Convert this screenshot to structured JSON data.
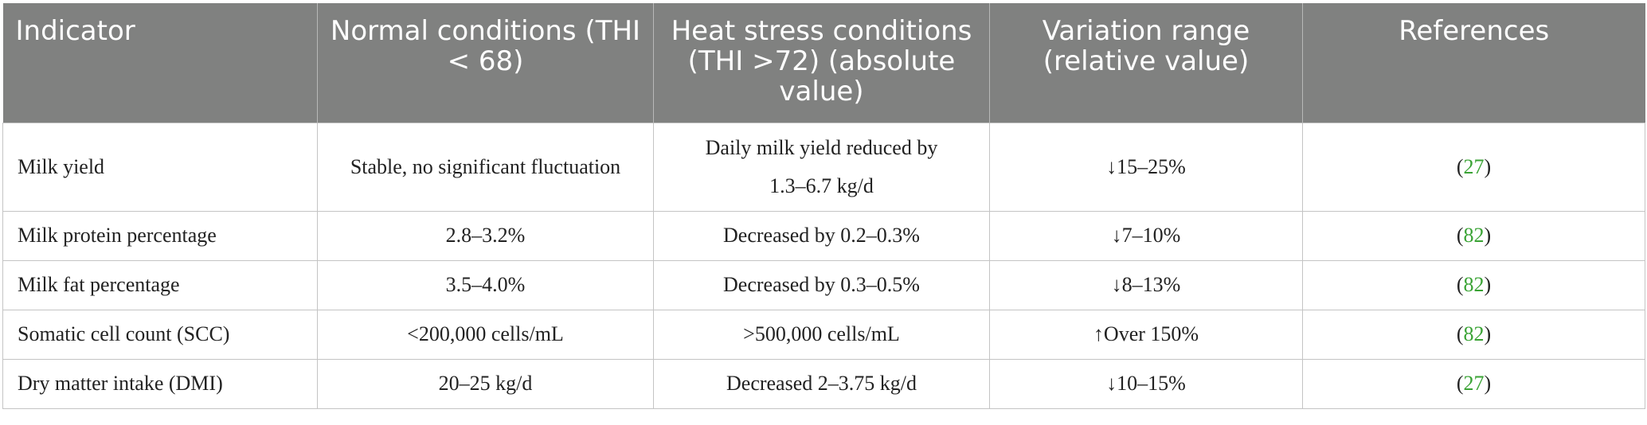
{
  "table": {
    "headers": [
      "Indicator",
      "Normal conditions (THI < 68)",
      "Heat stress conditions (THI >72) (absolute value)",
      "Variation range (relative value)",
      "References"
    ],
    "rows": [
      {
        "indicator": "Milk yield",
        "normal": "Stable, no significant fluctuation",
        "heat_stress": "Daily milk yield reduced by 1.3–6.7 kg/d",
        "variation": "↓15–25%",
        "ref": "27"
      },
      {
        "indicator": "Milk protein percentage",
        "normal": "2.8–3.2%",
        "heat_stress": "Decreased by 0.2–0.3%",
        "variation": "↓7–10%",
        "ref": "82"
      },
      {
        "indicator": "Milk fat percentage",
        "normal": "3.5–4.0%",
        "heat_stress": "Decreased by 0.3–0.5%",
        "variation": "↓8–13%",
        "ref": "82"
      },
      {
        "indicator": "Somatic cell count (SCC)",
        "normal": "<200,000 cells/mL",
        "heat_stress": ">500,000 cells/mL",
        "variation": "↑Over 150%",
        "ref": "82"
      },
      {
        "indicator": "Dry matter intake (DMI)",
        "normal": "20–25 kg/d",
        "heat_stress": "Decreased 2–3.75 kg/d",
        "variation": "↓10–15%",
        "ref": "27"
      }
    ]
  },
  "colors": {
    "header_bg": "#808180",
    "header_text": "#ffffff",
    "reference_link": "#3aa335",
    "border": "#c4c4c4"
  }
}
